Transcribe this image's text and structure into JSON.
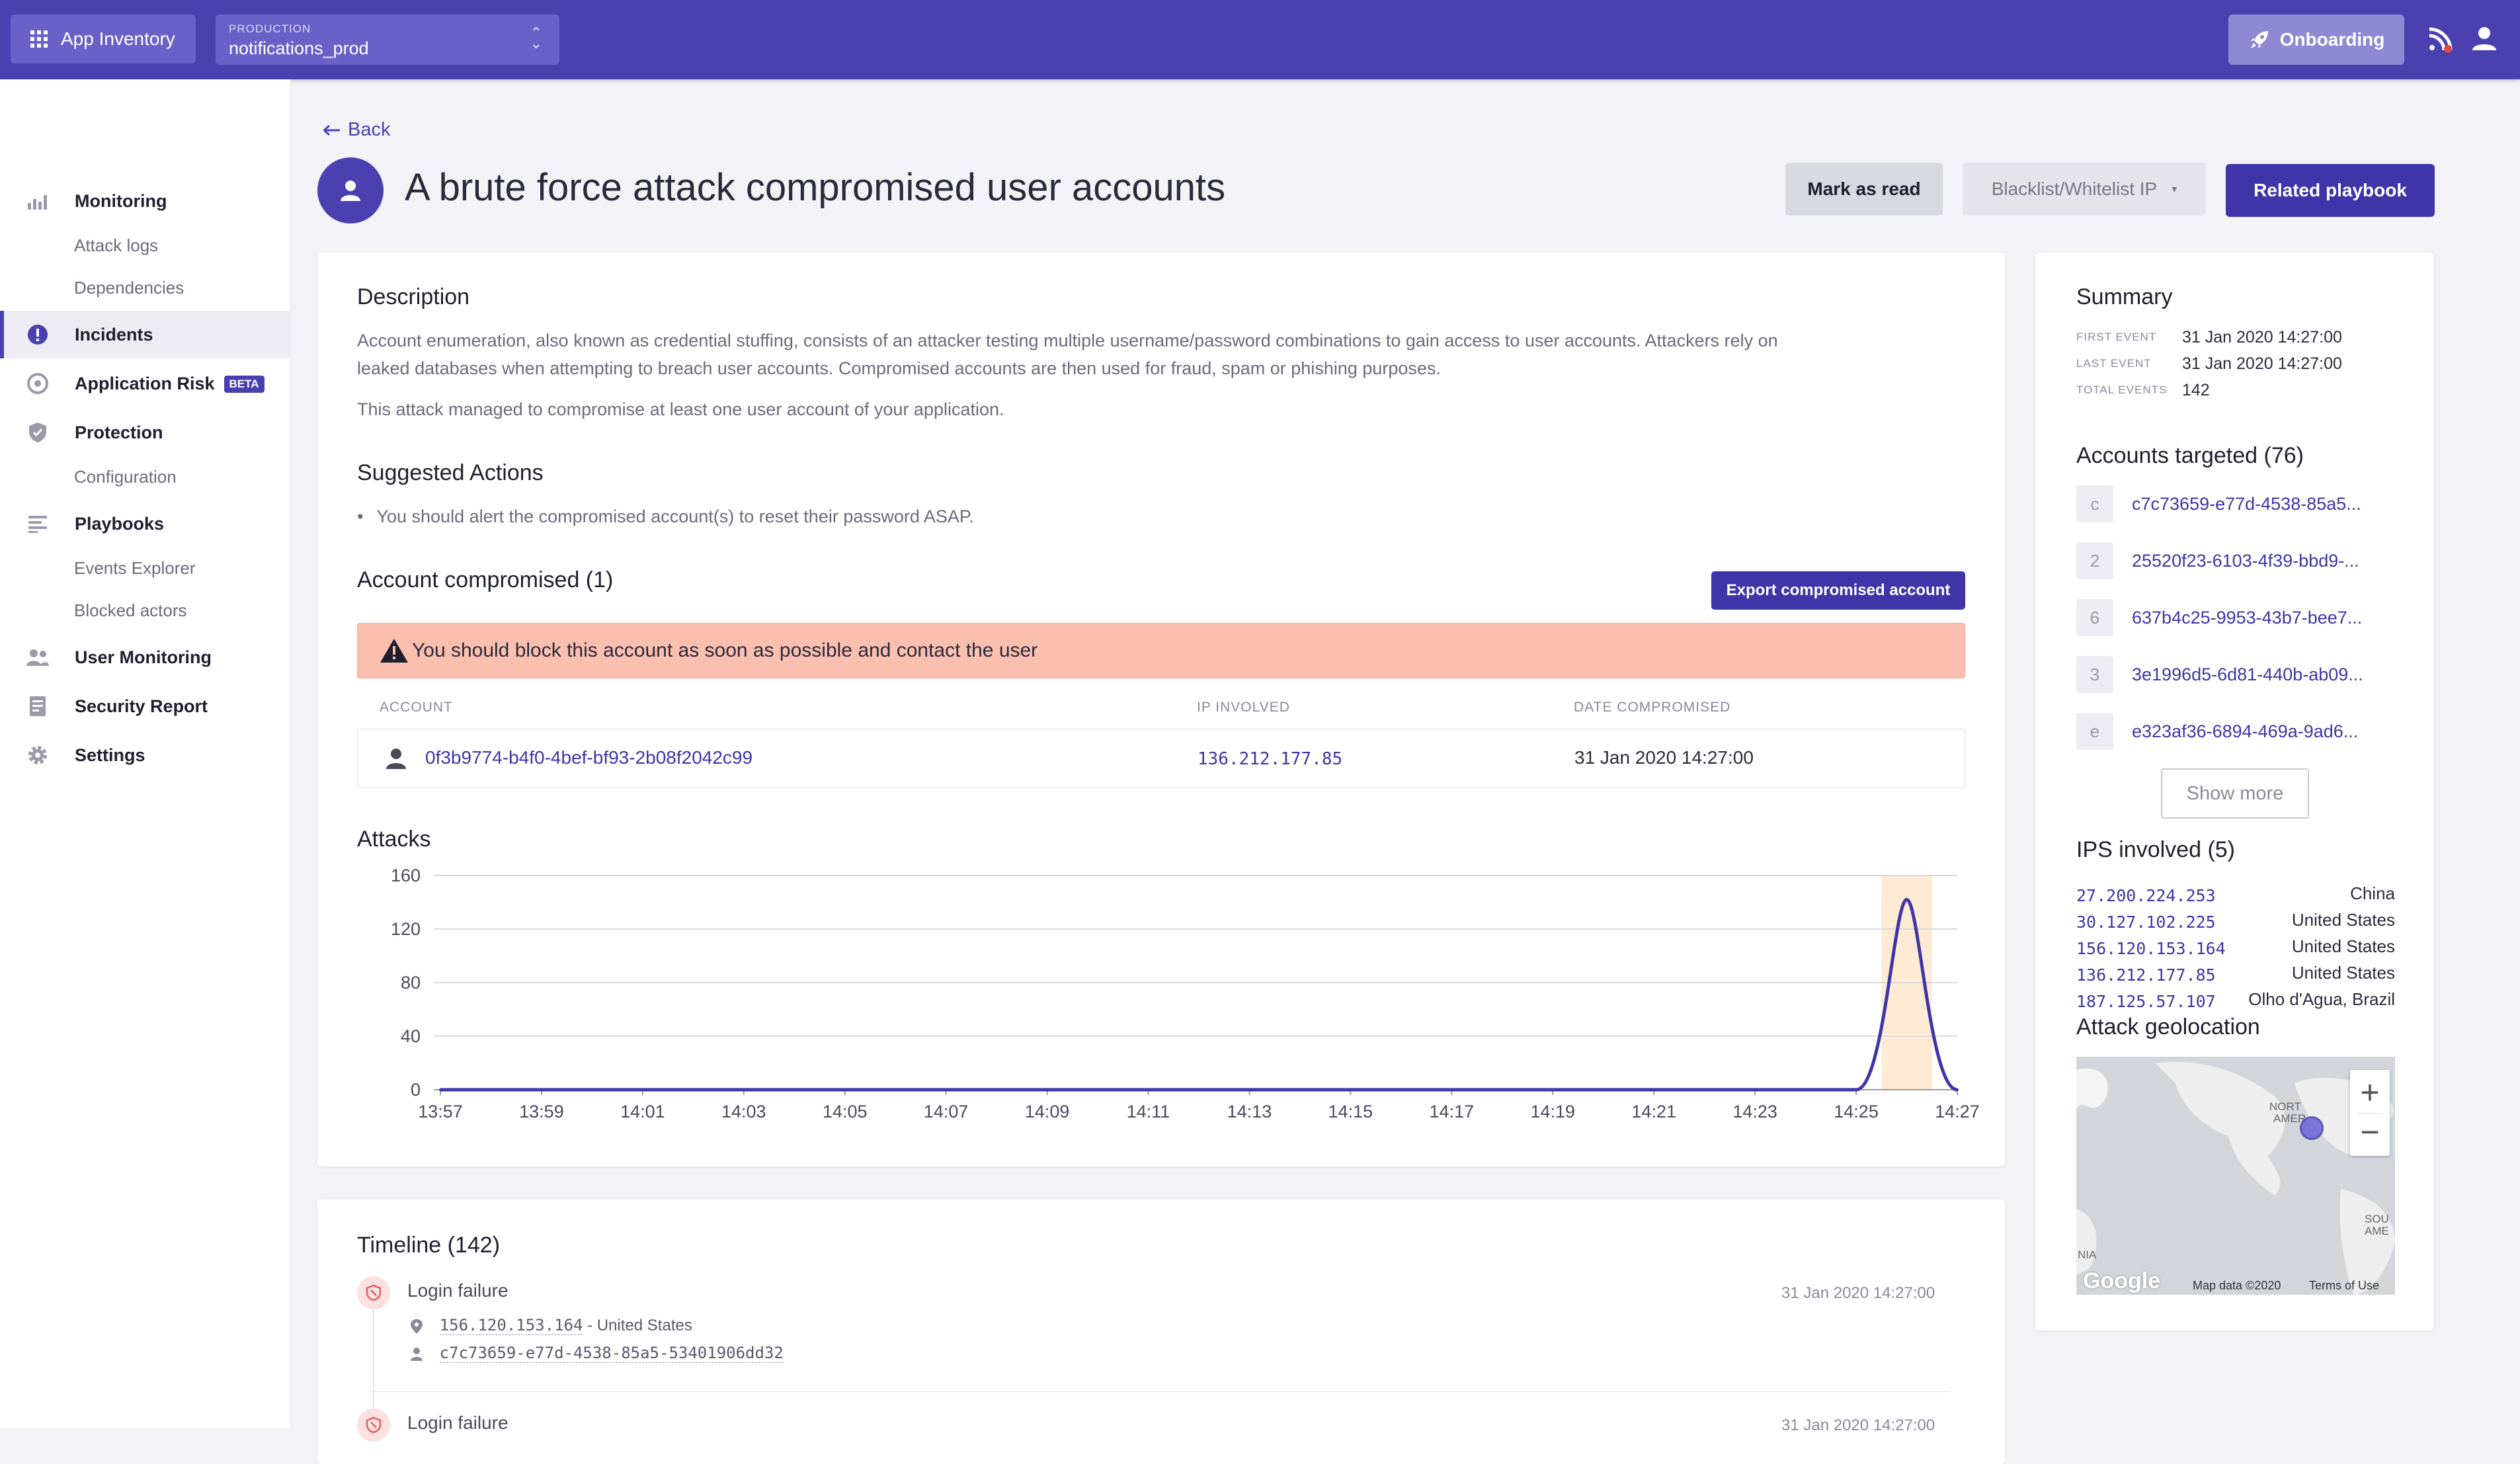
{
  "header": {
    "app_button": "App Inventory",
    "env_label": "PRODUCTION",
    "env_value": "notifications_prod",
    "onboarding": "Onboarding"
  },
  "sidebar": {
    "monitoring": "Monitoring",
    "attack_logs": "Attack logs",
    "dependencies": "Dependencies",
    "incidents": "Incidents",
    "application_risk": "Application Risk",
    "beta": "BETA",
    "protection": "Protection",
    "configuration": "Configuration",
    "playbooks": "Playbooks",
    "events_explorer": "Events Explorer",
    "blocked_actors": "Blocked actors",
    "user_monitoring": "User Monitoring",
    "security_report": "Security Report",
    "settings": "Settings"
  },
  "page": {
    "back": "Back",
    "title": "A brute force attack compromised user accounts",
    "mark_as_read": "Mark as read",
    "blacklist": "Blacklist/Whitelist IP",
    "related_playbook": "Related playbook"
  },
  "description": {
    "heading": "Description",
    "para1_line1": "Account enumeration, also known as credential stuffing, consists of an attacker testing multiple username/password combinations to gain access to user accounts. Attackers rely on",
    "para1_line2": "leaked databases when attempting to breach user accounts. Compromised accounts are then used for fraud, spam or phishing purposes.",
    "para2": "This attack managed to compromise at least one user account of your application."
  },
  "suggested": {
    "heading": "Suggested Actions",
    "item1": "You should alert the compromised account(s) to reset their password ASAP."
  },
  "compromised": {
    "heading": "Account compromised (1)",
    "export_button": "Export compromised account",
    "warning": "You should block this account as soon as possible and contact the user",
    "col_account": "ACCOUNT",
    "col_ip": "IP INVOLVED",
    "col_date": "DATE COMPROMISED",
    "row": {
      "account": "0f3b9774-b4f0-4bef-bf93-2b08f2042c99",
      "ip": "136.212.177.85",
      "date": "31 Jan 2020 14:27:00"
    }
  },
  "chart_data": {
    "type": "line",
    "title": "Attacks",
    "x": [
      "13:57",
      "13:58",
      "13:59",
      "14:00",
      "14:01",
      "14:02",
      "14:03",
      "14:04",
      "14:05",
      "14:06",
      "14:07",
      "14:08",
      "14:09",
      "14:10",
      "14:11",
      "14:12",
      "14:13",
      "14:14",
      "14:15",
      "14:16",
      "14:17",
      "14:18",
      "14:19",
      "14:20",
      "14:21",
      "14:22",
      "14:23",
      "14:24",
      "14:25",
      "14:26",
      "14:27"
    ],
    "x_tick_labels": [
      "13:57",
      "13:59",
      "14:01",
      "14:03",
      "14:05",
      "14:07",
      "14:09",
      "14:11",
      "14:13",
      "14:15",
      "14:17",
      "14:19",
      "14:21",
      "14:23",
      "14:25",
      "14:27"
    ],
    "series": [
      {
        "values": [
          0,
          0,
          0,
          0,
          0,
          0,
          0,
          0,
          0,
          0,
          0,
          0,
          0,
          0,
          0,
          0,
          0,
          0,
          0,
          0,
          0,
          0,
          0,
          0,
          0,
          0,
          0,
          0,
          0,
          142,
          0
        ]
      }
    ],
    "y_ticks": [
      0,
      40,
      80,
      120,
      160
    ],
    "ylim": [
      0,
      160
    ],
    "grid": true,
    "highlight_x": "14:26",
    "line_color": "#3f35a8",
    "highlight_color": "#fdebd3"
  },
  "summary": {
    "heading": "Summary",
    "first_event_label": "FIRST EVENT",
    "first_event": "31 Jan 2020 14:27:00",
    "last_event_label": "LAST EVENT",
    "last_event": "31 Jan 2020 14:27:00",
    "total_events_label": "TOTAL EVENTS",
    "total_events": "142"
  },
  "accounts": {
    "heading": "Accounts targeted (76)",
    "items": [
      {
        "chip": "c",
        "id": "c7c73659-e77d-4538-85a5..."
      },
      {
        "chip": "2",
        "id": "25520f23-6103-4f39-bbd9-..."
      },
      {
        "chip": "6",
        "id": "637b4c25-9953-43b7-bee7..."
      },
      {
        "chip": "3",
        "id": "3e1996d5-6d81-440b-ab09..."
      },
      {
        "chip": "e",
        "id": "e323af36-6894-469a-9ad6..."
      }
    ],
    "show_more": "Show more"
  },
  "ips": {
    "heading": "IPS involved (5)",
    "items": [
      {
        "ip": "27.200.224.253",
        "country": "China"
      },
      {
        "ip": "30.127.102.225",
        "country": "United States"
      },
      {
        "ip": "156.120.153.164",
        "country": "United States"
      },
      {
        "ip": "136.212.177.85",
        "country": "United States"
      },
      {
        "ip": "187.125.57.107",
        "country": "Olho d'Agua, Brazil"
      }
    ]
  },
  "geo": {
    "heading": "Attack geolocation",
    "map_data": "Map data ©2020",
    "terms": "Terms of Use",
    "google": "Google",
    "label_north": "NORT",
    "label_amer": "AMER",
    "label_sou": "SOU",
    "label_ame": "AME",
    "label_nia": "NIA"
  },
  "timeline": {
    "heading": "Timeline (142)",
    "events": [
      {
        "title": "Login failure",
        "time": "31 Jan 2020 14:27:00",
        "ip": "156.120.153.164",
        "location": " - United States",
        "user": "c7c73659-e77d-4538-85a5-53401906dd32"
      },
      {
        "title": "Login failure",
        "time": "31 Jan 2020 14:27:00"
      }
    ]
  }
}
